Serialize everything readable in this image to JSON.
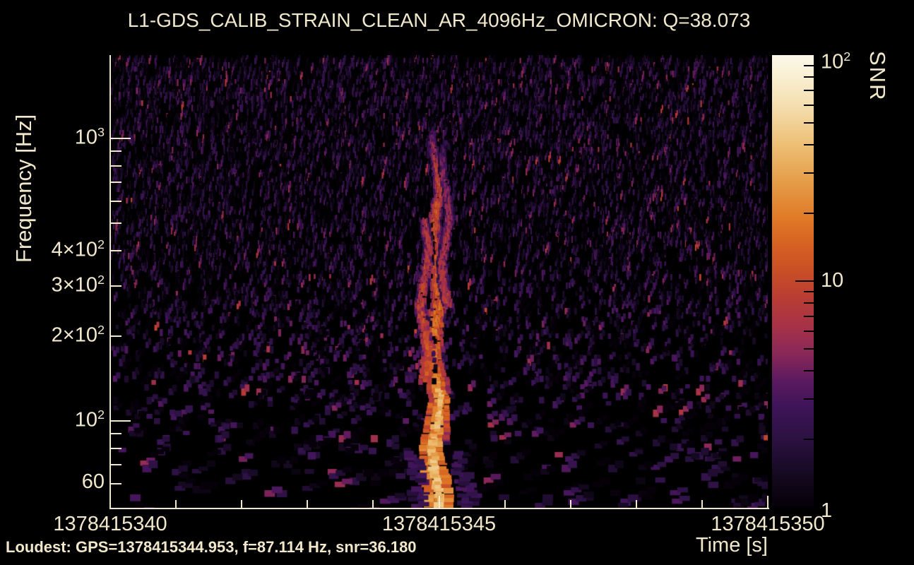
{
  "title": "L1-GDS_CALIB_STRAIN_CLEAN_AR_4096Hz_OMICRON: Q=38.073",
  "footer": "Loudest: GPS=1378415344.953, f=87.114 Hz, snr=36.180",
  "colors": {
    "background": "#000000",
    "text": "#f1e7cb",
    "axis": "#f1e7cb",
    "colorbar_tick": "#000000"
  },
  "chart_data": {
    "type": "heatmap",
    "subtype": "omicron-q-spectrogram",
    "title": "L1-GDS_CALIB_STRAIN_CLEAN_AR_4096Hz_OMICRON: Q=38.073",
    "q_value": 38.073,
    "xlabel": "Time [s]",
    "ylabel": "Frequency [Hz]",
    "colorbar_label": "SNR",
    "x_range": [
      1378415340,
      1378415350
    ],
    "y_range_hz": [
      49,
      1970
    ],
    "y_scale": "log",
    "snr_range": [
      1,
      100
    ],
    "snr_scale": "log",
    "grid": false,
    "legend": "none",
    "colorbar_position": "right",
    "x_ticks": {
      "minor_step": 1,
      "majors": [
        {
          "t": 1378415340,
          "label": "1378415340"
        },
        {
          "t": 1378415345,
          "label": "1378415345"
        },
        {
          "t": 1378415350,
          "label": "1378415350"
        }
      ]
    },
    "y_ticks": {
      "all_hz": [
        60,
        70,
        80,
        90,
        100,
        200,
        300,
        400,
        500,
        600,
        700,
        800,
        900,
        1000
      ],
      "decade_hz": [
        100,
        1000
      ],
      "labels": [
        {
          "hz": 1000,
          "base": "10",
          "exp": "3"
        },
        {
          "hz": 400,
          "base": "4×10",
          "exp": "2"
        },
        {
          "hz": 300,
          "base": "3×10",
          "exp": "2"
        },
        {
          "hz": 200,
          "base": "2×10",
          "exp": "2"
        },
        {
          "hz": 100,
          "base": "10",
          "exp": "2"
        },
        {
          "hz": 60,
          "base": "60",
          "exp": ""
        }
      ]
    },
    "colorbar_ticks": {
      "majors": [
        1,
        10,
        100
      ],
      "minors": [
        2,
        3,
        4,
        5,
        6,
        7,
        8,
        9,
        20,
        30,
        40,
        50,
        60,
        70,
        80,
        90
      ],
      "labels": [
        {
          "snr": 100,
          "base": "10",
          "exp": "2",
          "dy": 9
        },
        {
          "snr": 10,
          "base": "10",
          "exp": "",
          "dy": 0
        },
        {
          "snr": 1,
          "base": "1",
          "exp": "",
          "dy": 6
        }
      ]
    },
    "palette": [
      {
        "stop": 0.0,
        "color": "#060009"
      },
      {
        "stop": 0.05,
        "color": "#100718"
      },
      {
        "stop": 0.1,
        "color": "#1d0c2d"
      },
      {
        "stop": 0.16,
        "color": "#2e1245"
      },
      {
        "stop": 0.22,
        "color": "#3d1458"
      },
      {
        "stop": 0.28,
        "color": "#5c1a60"
      },
      {
        "stop": 0.34,
        "color": "#8a2858"
      },
      {
        "stop": 0.4,
        "color": "#a63248"
      },
      {
        "stop": 0.46,
        "color": "#b83c34"
      },
      {
        "stop": 0.52,
        "color": "#c84e26"
      },
      {
        "stop": 0.58,
        "color": "#d66122"
      },
      {
        "stop": 0.64,
        "color": "#e07a28"
      },
      {
        "stop": 0.72,
        "color": "#e59d48"
      },
      {
        "stop": 0.8,
        "color": "#edbe74"
      },
      {
        "stop": 0.88,
        "color": "#f3dcaa"
      },
      {
        "stop": 0.95,
        "color": "#f9efd2"
      },
      {
        "stop": 1.0,
        "color": "#fbf8ea"
      }
    ],
    "loudest": {
      "gps": 1378415344.953,
      "f_hz": 87.114,
      "snr": 36.18
    },
    "burst": {
      "t_center_gps": 1378415344.953,
      "f_extent_hz": [
        50,
        1150
      ],
      "core_snr": 36,
      "snr_profile": [
        [
          1.0,
          34
        ],
        [
          0.87,
          30
        ],
        [
          0.75,
          22
        ],
        [
          0.59,
          15
        ],
        [
          0.44,
          12
        ],
        [
          0.28,
          9
        ],
        [
          0.16,
          5
        ]
      ],
      "strands": [
        {
          "dx": 0,
          "f_range": [
            50,
            1150
          ],
          "gain": 1.0,
          "phase": 0.0,
          "main": true
        },
        {
          "dx": -16,
          "f_range": [
            140,
            520
          ],
          "gain": 0.62,
          "phase": 0.45,
          "main": false
        },
        {
          "dx": 14,
          "f_range": [
            260,
            1000
          ],
          "gain": 0.55,
          "phase": 0.8,
          "main": false
        }
      ]
    },
    "noise": {
      "typical_snr": [
        1,
        3
      ],
      "accent_snr": [
        4,
        10
      ],
      "coverage_top": 0.42,
      "coverage_bottom": 0.1,
      "seed": 7
    }
  }
}
